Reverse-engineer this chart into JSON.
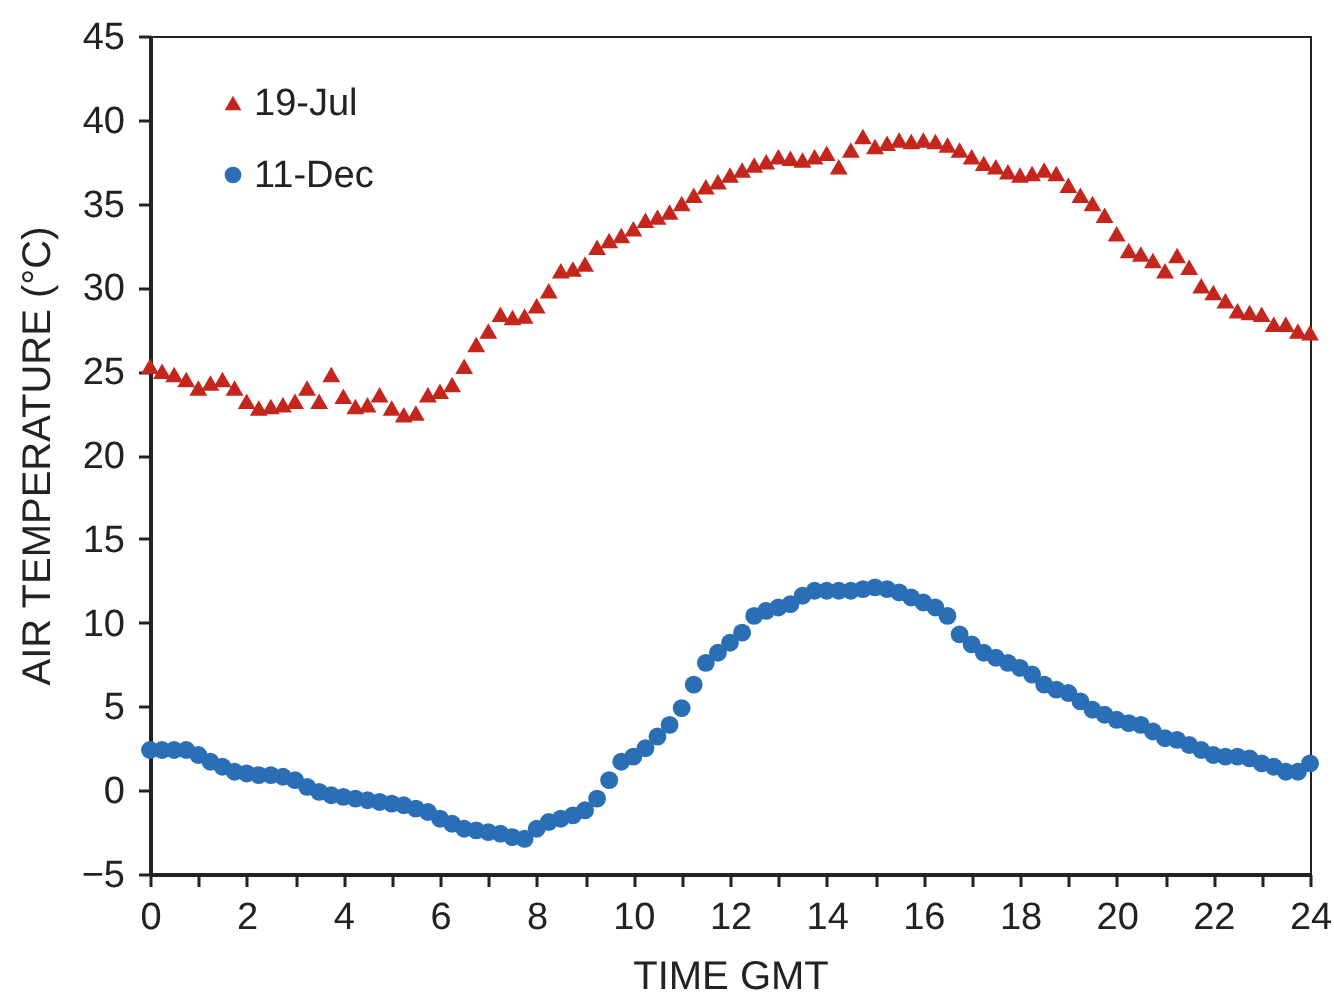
{
  "chart_data": {
    "type": "scatter",
    "xlabel": "TIME GMT",
    "ylabel": "AIR TEMPERATURE (°C)",
    "xlim": [
      0,
      24
    ],
    "ylim": [
      -5,
      45
    ],
    "xticks": [
      0,
      {
        "value": 1,
        "label": null
      },
      2,
      {
        "value": 3,
        "label": null
      },
      4,
      {
        "value": 5,
        "label": null
      },
      6,
      {
        "value": 7,
        "label": null
      },
      8,
      {
        "value": 9,
        "label": null
      },
      10,
      {
        "value": 11,
        "label": null
      },
      12,
      {
        "value": 13,
        "label": null
      },
      14,
      {
        "value": 15,
        "label": null
      },
      16,
      {
        "value": 17,
        "label": null
      },
      18,
      {
        "value": 19,
        "label": null
      },
      20,
      {
        "value": 21,
        "label": null
      },
      22,
      {
        "value": 23,
        "label": null
      },
      24
    ],
    "yticks": [
      -5,
      0,
      5,
      10,
      15,
      20,
      25,
      30,
      35,
      40,
      45
    ],
    "legend": "top left",
    "x": [
      0,
      0.25,
      0.5,
      0.75,
      1,
      1.25,
      1.5,
      1.75,
      2,
      2.25,
      2.5,
      2.75,
      3,
      3.25,
      3.5,
      3.75,
      4,
      4.25,
      4.5,
      4.75,
      5,
      5.25,
      5.5,
      5.75,
      6,
      6.25,
      6.5,
      6.75,
      7,
      7.25,
      7.5,
      7.75,
      8,
      8.25,
      8.5,
      8.75,
      9,
      9.25,
      9.5,
      9.75,
      10,
      10.25,
      10.5,
      10.75,
      11,
      11.25,
      11.5,
      11.75,
      12,
      12.25,
      12.5,
      12.75,
      13,
      13.25,
      13.5,
      13.75,
      14,
      14.25,
      14.5,
      14.75,
      15,
      15.25,
      15.5,
      15.75,
      16,
      16.25,
      16.5,
      16.75,
      17,
      17.25,
      17.5,
      17.75,
      18,
      18.25,
      18.5,
      18.75,
      19,
      19.25,
      19.5,
      19.75,
      20,
      20.25,
      20.5,
      20.75,
      21,
      21.25,
      21.5,
      21.75,
      22,
      22.25,
      22.5,
      22.75,
      23,
      23.25,
      23.5,
      23.75,
      24
    ],
    "series": [
      {
        "name": "19-Jul",
        "color": "#c4261d",
        "marker": "triangle",
        "values": [
          25.3,
          25.0,
          24.8,
          24.5,
          24.0,
          24.3,
          24.5,
          24.0,
          23.2,
          22.8,
          22.9,
          23.0,
          23.2,
          24.0,
          23.2,
          24.8,
          23.5,
          22.9,
          23.0,
          23.6,
          22.8,
          22.4,
          22.5,
          23.6,
          23.8,
          24.2,
          25.3,
          26.6,
          27.4,
          28.4,
          28.2,
          28.3,
          28.9,
          29.8,
          31.0,
          31.1,
          31.4,
          32.4,
          32.8,
          33.1,
          33.5,
          34.0,
          34.2,
          34.5,
          35.0,
          35.5,
          36.0,
          36.3,
          36.7,
          37.0,
          37.3,
          37.5,
          37.8,
          37.7,
          37.6,
          37.8,
          38.0,
          37.2,
          38.2,
          39.0,
          38.4,
          38.6,
          38.8,
          38.7,
          38.8,
          38.7,
          38.5,
          38.2,
          37.8,
          37.4,
          37.2,
          36.9,
          36.7,
          36.8,
          37.0,
          36.8,
          36.1,
          35.5,
          35.0,
          34.3,
          33.2,
          32.2,
          32.0,
          31.6,
          31.0,
          31.9,
          31.2,
          30.1,
          29.7,
          29.2,
          28.6,
          28.5,
          28.4,
          27.8,
          27.8,
          27.4,
          27.3
        ]
      },
      {
        "name": "11-Dec",
        "color": "#2a6fb5",
        "marker": "circle",
        "values": [
          2.4,
          2.4,
          2.4,
          2.4,
          2.1,
          1.7,
          1.4,
          1.1,
          1.0,
          0.9,
          0.9,
          0.8,
          0.6,
          0.2,
          -0.1,
          -0.3,
          -0.4,
          -0.5,
          -0.6,
          -0.7,
          -0.8,
          -0.9,
          -1.1,
          -1.3,
          -1.7,
          -2.0,
          -2.3,
          -2.4,
          -2.5,
          -2.6,
          -2.8,
          -2.9,
          -2.3,
          -1.9,
          -1.7,
          -1.5,
          -1.2,
          -0.5,
          0.6,
          1.7,
          2.0,
          2.5,
          3.2,
          3.9,
          4.9,
          6.3,
          7.6,
          8.2,
          8.8,
          9.4,
          10.4,
          10.7,
          10.9,
          11.1,
          11.6,
          11.9,
          11.9,
          11.9,
          11.9,
          12.0,
          12.1,
          12.0,
          11.8,
          11.5,
          11.2,
          10.9,
          10.4,
          9.3,
          8.7,
          8.2,
          7.9,
          7.6,
          7.3,
          6.9,
          6.3,
          6.0,
          5.8,
          5.3,
          4.8,
          4.5,
          4.2,
          4.0,
          3.9,
          3.5,
          3.1,
          3.0,
          2.7,
          2.4,
          2.1,
          2.0,
          2.0,
          1.9,
          1.6,
          1.4,
          1.1,
          1.1,
          1.6
        ]
      }
    ]
  }
}
